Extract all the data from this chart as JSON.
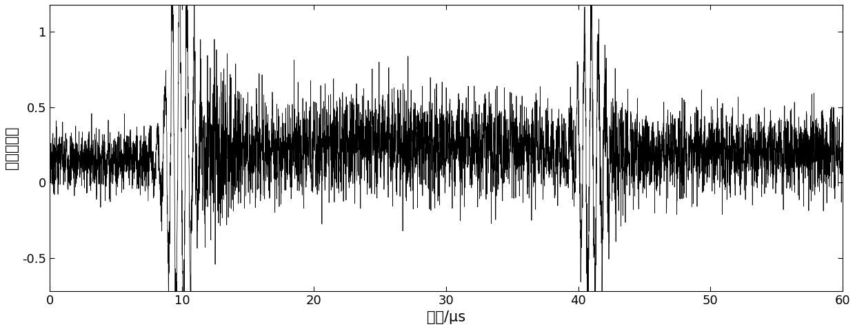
{
  "xlim": [
    0,
    60
  ],
  "ylim": [
    -0.72,
    1.18
  ],
  "yticks": [
    -0.5,
    0,
    0.5,
    1
  ],
  "xticks": [
    0,
    10,
    20,
    30,
    40,
    50,
    60
  ],
  "xlabel": "时间/μs",
  "ylabel": "归一化幅值",
  "line_color": "#000000",
  "line_width": 0.55,
  "background_color": "#ffffff",
  "n_points": 6000,
  "seed": 7,
  "figsize": [
    12.4,
    4.78
  ],
  "dpi": 100,
  "xlabel_fontsize": 15,
  "ylabel_fontsize": 15,
  "tick_fontsize": 13
}
